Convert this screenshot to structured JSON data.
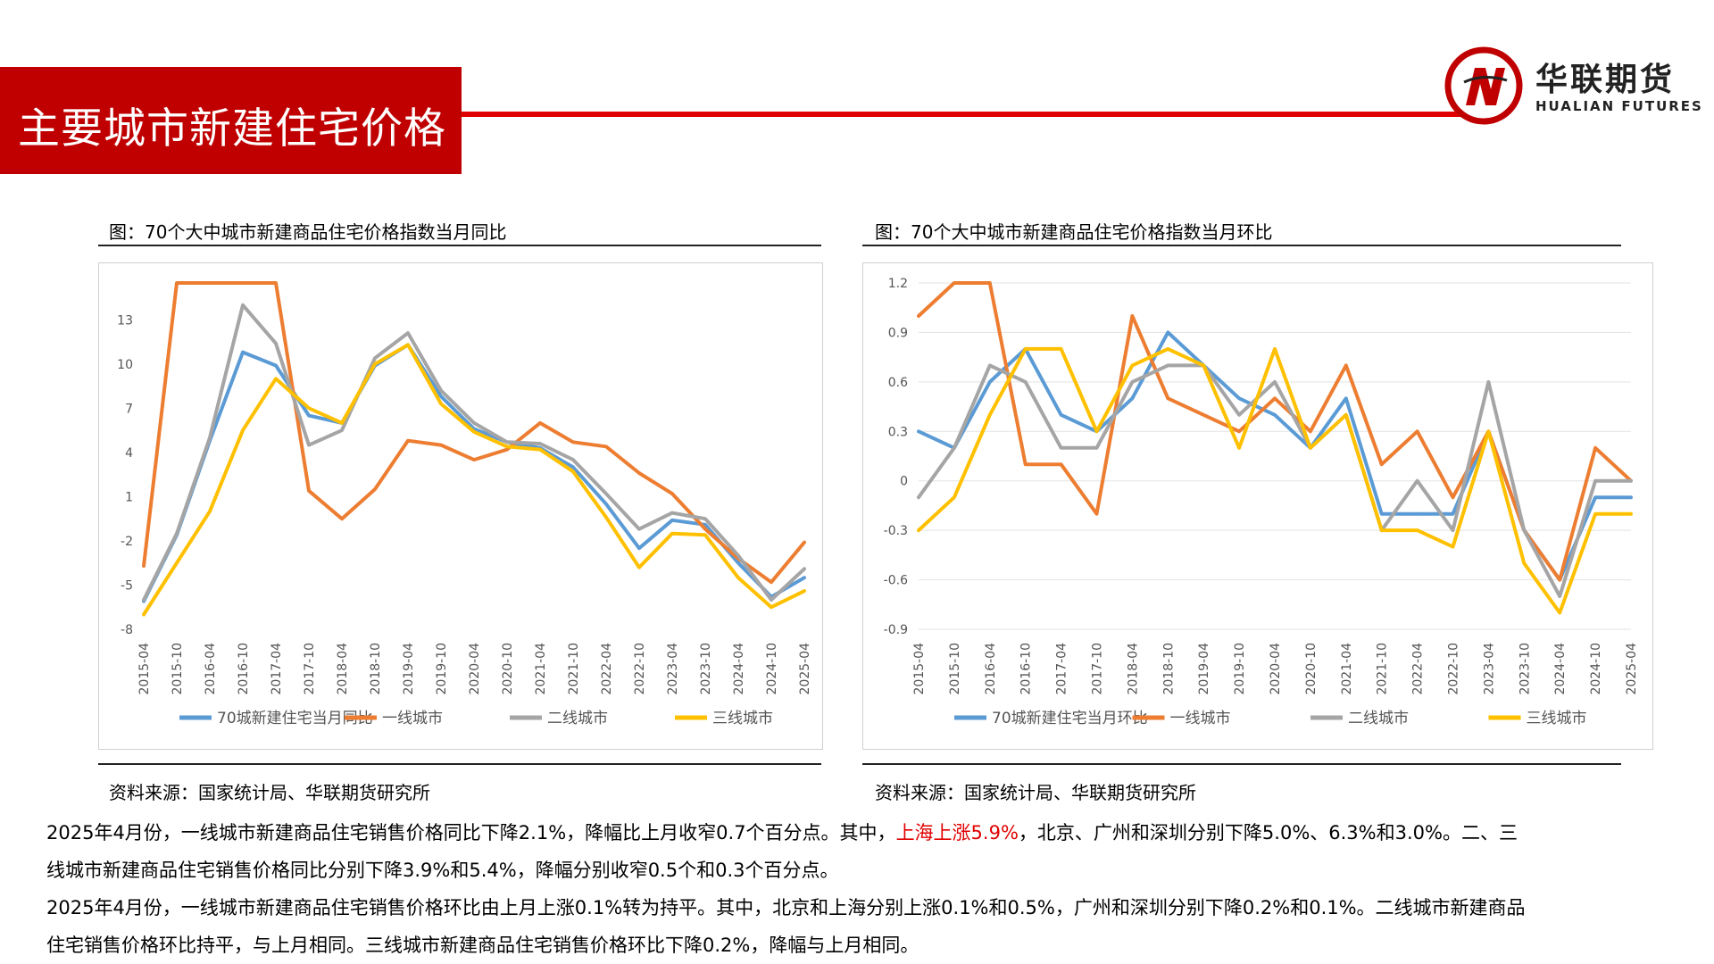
{
  "header": {
    "title": "主要城市新建住宅价格"
  },
  "logo": {
    "name_cn": "华联期货",
    "name_en": "HUALIAN FUTURES"
  },
  "colors": {
    "brand_red": "#c00000",
    "s1": "#5b9bd5",
    "s2": "#ed7d31",
    "s3": "#a5a5a5",
    "s4": "#ffc000"
  },
  "chart_left": {
    "caption": "图：70个大中城市新建商品住宅价格指数当月同比",
    "source": "资料来源：国家统计局、华联期货研究所"
  },
  "chart_right": {
    "caption": "图：70个大中城市新建商品住宅价格指数当月环比",
    "source": "资料来源：国家统计局、华联期货研究所"
  },
  "text": {
    "p1a": "2025年4月份，一线城市新建商品住宅销售价格同比下降2.1%，降幅比上月收窄0.7个百分点。其中，",
    "p1b": "上海上涨5.9%",
    "p1c": "，北京、广州和深圳分别下降5.0%、6.3%和3.0%。二、三",
    "p2": "线城市新建商品住宅销售价格同比分别下降3.9%和5.4%，降幅分别收窄0.5个和0.3个百分点。",
    "p3": "2025年4月份，一线城市新建商品住宅销售价格环比由上月上涨0.1%转为持平。其中，北京和上海分别上涨0.1%和0.5%，广州和深圳分别下降0.2%和0.1%。二线城市新建商品",
    "p4": "住宅销售价格环比持平，与上月相同。三线城市新建商品住宅销售价格环比下降0.2%，降幅与上月相同。"
  },
  "chart_data": [
    {
      "type": "line",
      "title": "图：70个大中城市新建商品住宅价格指数当月同比",
      "x": [
        "2015-04",
        "2015-10",
        "2016-04",
        "2016-10",
        "2017-04",
        "2017-10",
        "2018-04",
        "2018-10",
        "2019-04",
        "2019-10",
        "2020-04",
        "2020-10",
        "2021-04",
        "2021-10",
        "2022-04",
        "2022-10",
        "2023-04",
        "2023-10",
        "2024-04",
        "2024-10",
        "2025-04"
      ],
      "yticks": [
        "13",
        "10",
        "7",
        "4",
        "1",
        "-2",
        "-5",
        "-8"
      ],
      "ylim": [
        -8,
        15.5
      ],
      "legend_position": "bottom",
      "series": [
        {
          "name": "70城新建住宅当月同比",
          "values": [
            -6.1,
            -1.6,
            4.8,
            10.8,
            9.9,
            6.5,
            6.0,
            9.9,
            11.3,
            7.8,
            5.6,
            4.7,
            4.3,
            3.0,
            0.5,
            -2.5,
            -0.6,
            -0.9,
            -3.5,
            -5.8,
            -4.5
          ]
        },
        {
          "name": "一线城市",
          "values": [
            -3.7,
            15.5,
            15.5,
            15.5,
            15.5,
            1.4,
            -0.5,
            1.5,
            4.8,
            4.5,
            3.5,
            4.2,
            6.0,
            4.7,
            4.4,
            2.6,
            1.2,
            -1.2,
            -3.2,
            -4.8,
            -2.1
          ]
        },
        {
          "name": "二线城市",
          "values": [
            -6.0,
            -1.5,
            5.0,
            14.0,
            11.4,
            4.5,
            5.5,
            10.4,
            12.1,
            8.2,
            6.0,
            4.7,
            4.6,
            3.5,
            1.2,
            -1.2,
            -0.1,
            -0.5,
            -3.0,
            -6.0,
            -3.9
          ]
        },
        {
          "name": "三线城市",
          "values": [
            -7.0,
            -3.5,
            0.0,
            5.5,
            9.0,
            7.0,
            6.0,
            10.0,
            11.3,
            7.3,
            5.4,
            4.4,
            4.2,
            2.7,
            -0.4,
            -3.8,
            -1.5,
            -1.6,
            -4.5,
            -6.5,
            -5.4
          ]
        }
      ]
    },
    {
      "type": "line",
      "title": "图：70个大中城市新建商品住宅价格指数当月环比",
      "x": [
        "2015-04",
        "2015-10",
        "2016-04",
        "2016-10",
        "2017-04",
        "2017-10",
        "2018-04",
        "2018-10",
        "2019-04",
        "2019-10",
        "2020-04",
        "2020-10",
        "2021-04",
        "2021-10",
        "2022-04",
        "2022-10",
        "2023-04",
        "2023-10",
        "2024-04",
        "2024-10",
        "2025-04"
      ],
      "yticks": [
        "1.2",
        "0.9",
        "0.6",
        "0.3",
        "0",
        "-0.3",
        "-0.6",
        "-0.9"
      ],
      "ylim": [
        -0.9,
        1.2
      ],
      "legend_position": "bottom",
      "series": [
        {
          "name": "70城新建住宅当月环比",
          "values": [
            0.3,
            0.2,
            0.6,
            0.8,
            0.4,
            0.3,
            0.5,
            0.9,
            0.7,
            0.5,
            0.4,
            0.2,
            0.5,
            -0.2,
            -0.2,
            -0.2,
            0.3,
            -0.3,
            -0.6,
            -0.1,
            -0.1
          ]
        },
        {
          "name": "一线城市",
          "values": [
            1.0,
            1.2,
            1.2,
            0.1,
            0.1,
            -0.2,
            1.0,
            0.5,
            0.4,
            0.3,
            0.5,
            0.3,
            0.7,
            0.1,
            0.3,
            -0.1,
            0.3,
            -0.3,
            -0.6,
            0.2,
            0.0
          ]
        },
        {
          "name": "二线城市",
          "values": [
            -0.1,
            0.2,
            0.7,
            0.6,
            0.2,
            0.2,
            0.6,
            0.7,
            0.7,
            0.4,
            0.6,
            0.2,
            0.4,
            -0.3,
            0.0,
            -0.3,
            0.6,
            -0.3,
            -0.7,
            0.0,
            0.0
          ]
        },
        {
          "name": "三线城市",
          "values": [
            -0.3,
            -0.1,
            0.4,
            0.8,
            0.8,
            0.3,
            0.7,
            0.8,
            0.7,
            0.2,
            0.8,
            0.2,
            0.4,
            -0.3,
            -0.3,
            -0.4,
            0.3,
            -0.5,
            -0.8,
            -0.2,
            -0.2
          ]
        }
      ]
    }
  ]
}
